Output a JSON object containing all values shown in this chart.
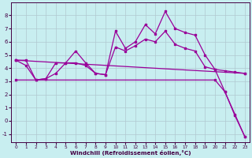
{
  "xlabel": "Windchill (Refroidissement éolien,°C)",
  "background_color": "#c8eef0",
  "line_color": "#990099",
  "grid_color": "#b0c8d0",
  "xlim": [
    -0.5,
    23.5
  ],
  "ylim": [
    -1.6,
    9.0
  ],
  "yticks": [
    -1,
    0,
    1,
    2,
    3,
    4,
    5,
    6,
    7,
    8
  ],
  "xticks": [
    0,
    1,
    2,
    3,
    4,
    5,
    6,
    7,
    8,
    9,
    10,
    11,
    12,
    13,
    14,
    15,
    16,
    17,
    18,
    19,
    20,
    21,
    22,
    23
  ],
  "line1_x": [
    0,
    1,
    2,
    3,
    4,
    5,
    6,
    7,
    8,
    9,
    10,
    11,
    12,
    13,
    14,
    15,
    16,
    17,
    18,
    19,
    20,
    21,
    22,
    23
  ],
  "line1_y": [
    4.6,
    4.6,
    3.1,
    3.2,
    3.6,
    4.4,
    4.4,
    4.2,
    3.6,
    3.5,
    6.8,
    5.5,
    6.0,
    7.3,
    6.6,
    8.3,
    7.0,
    6.7,
    6.5,
    5.0,
    3.9,
    2.2,
    0.4,
    -1.2
  ],
  "line2_x": [
    0,
    1,
    2,
    3,
    4,
    5,
    6,
    7,
    8,
    9,
    10,
    11,
    12,
    13,
    14,
    15,
    16,
    17,
    18,
    19,
    20,
    21,
    22,
    23
  ],
  "line2_y": [
    4.6,
    4.2,
    3.1,
    3.2,
    4.4,
    4.4,
    5.3,
    4.4,
    3.6,
    3.5,
    5.6,
    5.3,
    5.7,
    6.2,
    6.0,
    6.8,
    5.8,
    5.5,
    5.3,
    4.1,
    3.9,
    3.8,
    3.7,
    3.6
  ],
  "line3_x": [
    0,
    23
  ],
  "line3_y": [
    4.6,
    3.6
  ],
  "line4_x": [
    0,
    20,
    21,
    22,
    23
  ],
  "line4_y": [
    3.1,
    3.1,
    2.2,
    0.5,
    -1.2
  ]
}
